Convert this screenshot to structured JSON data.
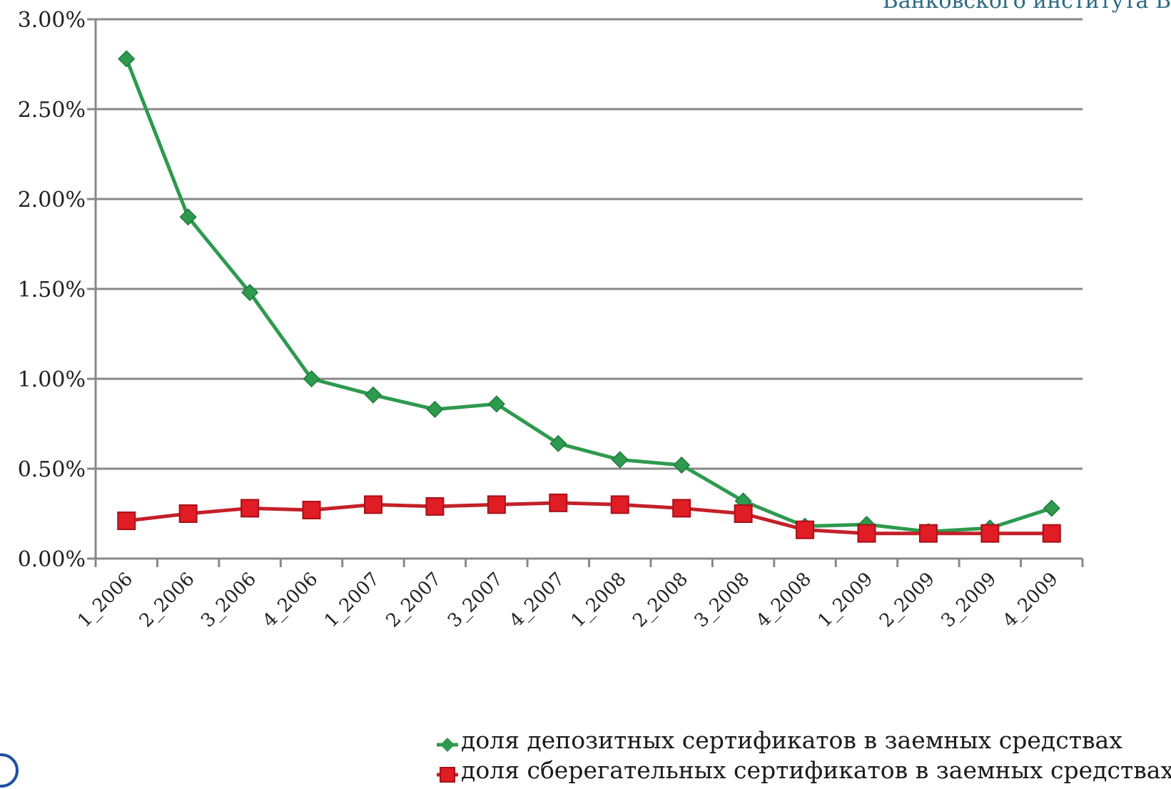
{
  "header_snippet": "Банковского института В",
  "colors": {
    "series1": "#2e9a4e",
    "series2": "#d8141c",
    "grid": "#888888",
    "axis": "#888888",
    "logo": "#1f4fa0"
  },
  "chart_data": {
    "type": "line",
    "title": "",
    "xlabel": "",
    "ylabel": "",
    "categories": [
      "1_2006",
      "2_2006",
      "3_2006",
      "4_2006",
      "1_2007",
      "2_2007",
      "3_2007",
      "4_2007",
      "1_2008",
      "2_2008",
      "3_2008",
      "4_2008",
      "1_2009",
      "2_2009",
      "3_2009",
      "4_2009"
    ],
    "y_ticks": [
      "0.00%",
      "0.50%",
      "1.00%",
      "1.50%",
      "2.00%",
      "2.50%",
      "3.00%"
    ],
    "ylim": [
      0,
      3
    ],
    "grid": true,
    "legend_position": "bottom-right",
    "series": [
      {
        "name": "доля депозитных сертификатов в заемных средствах",
        "marker": "diamond",
        "values": [
          2.78,
          1.9,
          1.48,
          1.0,
          0.91,
          0.83,
          0.86,
          0.64,
          0.55,
          0.52,
          0.32,
          0.18,
          0.19,
          0.15,
          0.17,
          0.28
        ]
      },
      {
        "name": "доля сберегательных сертификатов в заемных средствах",
        "marker": "square",
        "values": [
          0.21,
          0.25,
          0.28,
          0.27,
          0.3,
          0.29,
          0.3,
          0.31,
          0.3,
          0.28,
          0.25,
          0.16,
          0.14,
          0.14,
          0.14,
          0.14
        ]
      }
    ]
  }
}
